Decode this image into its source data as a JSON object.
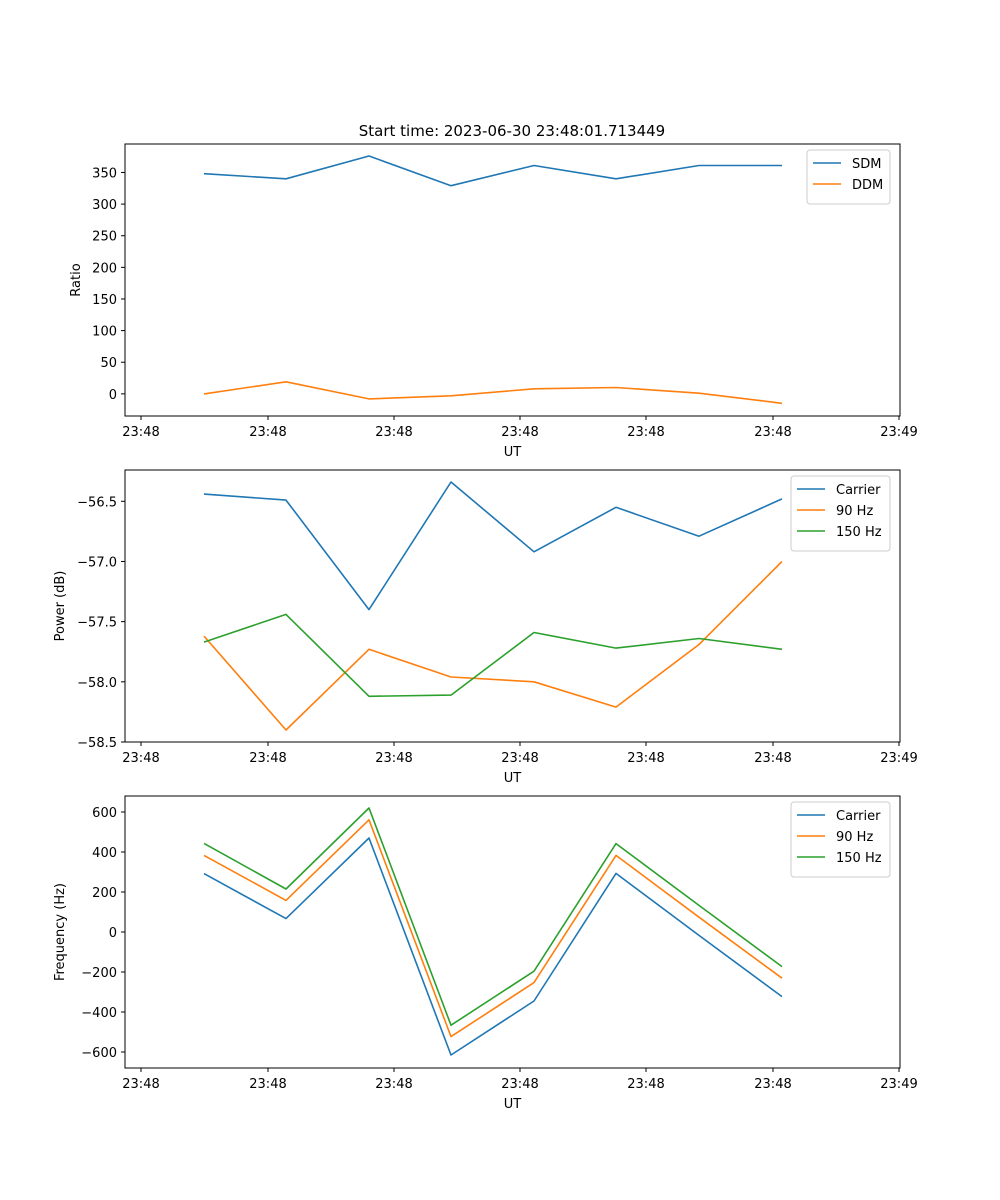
{
  "figure": {
    "title": "Start time: 2023-06-30 23:48:01.713449"
  },
  "chart_data": [
    {
      "type": "line",
      "title": "Start time: 2023-06-30 23:48:01.713449",
      "xlabel": "UT",
      "ylabel": "Ratio",
      "x_tick_labels": [
        "23:48",
        "23:48",
        "23:48",
        "23:48",
        "23:48",
        "23:48",
        "23:49"
      ],
      "ylim": [
        -35,
        395
      ],
      "yticks": [
        0,
        50,
        100,
        150,
        200,
        250,
        300,
        350
      ],
      "grid": false,
      "legend_position": "top-right",
      "series": [
        {
          "name": "SDM",
          "color": "#1f77b4",
          "values": [
            348,
            340,
            376,
            329,
            361,
            340,
            361,
            361
          ]
        },
        {
          "name": "DDM",
          "color": "#ff7f0e",
          "values": [
            0,
            19,
            -8,
            -3,
            8,
            10,
            1,
            -15
          ]
        }
      ]
    },
    {
      "type": "line",
      "xlabel": "UT",
      "ylabel": "Power (dB)",
      "x_tick_labels": [
        "23:48",
        "23:48",
        "23:48",
        "23:48",
        "23:48",
        "23:48",
        "23:49"
      ],
      "ylim": [
        -58.5,
        -56.24
      ],
      "yticks": [
        -58.5,
        -58.0,
        -57.5,
        -57.0,
        -56.5
      ],
      "ytick_labels": [
        "−58.5",
        "−58.0",
        "−57.5",
        "−57.0",
        "−56.5"
      ],
      "grid": false,
      "legend_position": "top-right",
      "series": [
        {
          "name": "Carrier",
          "color": "#1f77b4",
          "values": [
            -56.44,
            -56.49,
            -57.4,
            -56.34,
            -56.92,
            -56.55,
            -56.79,
            -56.48
          ]
        },
        {
          "name": "90 Hz",
          "color": "#ff7f0e",
          "values": [
            -57.62,
            -58.4,
            -57.73,
            -57.96,
            -58.0,
            -58.21,
            -57.69,
            -57.0
          ]
        },
        {
          "name": "150 Hz",
          "color": "#2ca02c",
          "values": [
            -57.67,
            -57.44,
            -58.12,
            -58.11,
            -57.59,
            -57.72,
            -57.64,
            -57.73
          ]
        }
      ]
    },
    {
      "type": "line",
      "xlabel": "UT",
      "ylabel": "Frequency (Hz)",
      "x_tick_labels": [
        "23:48",
        "23:48",
        "23:48",
        "23:48",
        "23:48",
        "23:48",
        "23:49"
      ],
      "ylim": [
        -680,
        680
      ],
      "yticks": [
        -600,
        -400,
        -200,
        0,
        200,
        400,
        600
      ],
      "ytick_labels": [
        "−600",
        "−400",
        "−200",
        "0",
        "200",
        "400",
        "600"
      ],
      "grid": false,
      "legend_position": "top-right",
      "series": [
        {
          "name": "Carrier",
          "color": "#1f77b4",
          "values": [
            292,
            67,
            470,
            -615,
            -345,
            293,
            -17,
            -323
          ]
        },
        {
          "name": "90 Hz",
          "color": "#ff7f0e",
          "values": [
            383,
            158,
            561,
            -523,
            -253,
            383,
            74,
            -231
          ]
        },
        {
          "name": "150 Hz",
          "color": "#2ca02c",
          "values": [
            443,
            215,
            620,
            -466,
            -196,
            442,
            133,
            -173
          ]
        }
      ]
    }
  ]
}
